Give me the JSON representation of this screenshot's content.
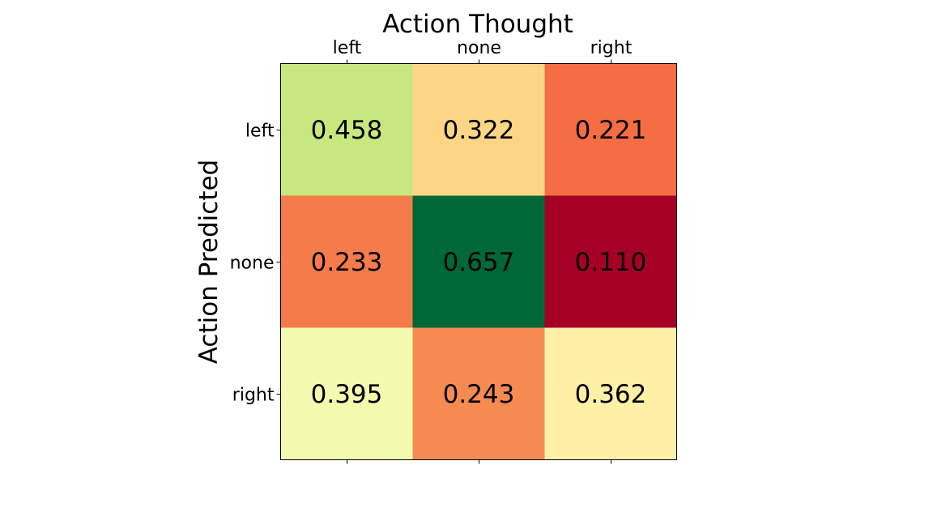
{
  "chart_data": {
    "type": "heatmap",
    "title": "Action Thought",
    "xlabel": "",
    "ylabel": "Action Predicted",
    "x_categories": [
      "left",
      "none",
      "right"
    ],
    "y_categories": [
      "left",
      "none",
      "right"
    ],
    "x_axis_position": "top",
    "values": [
      [
        0.458,
        0.322,
        0.221
      ],
      [
        0.233,
        0.657,
        0.11
      ],
      [
        0.395,
        0.243,
        0.362
      ]
    ],
    "value_labels": [
      [
        "0.458",
        "0.322",
        "0.221"
      ],
      [
        "0.233",
        "0.657",
        "0.110"
      ],
      [
        "0.395",
        "0.243",
        "0.362"
      ]
    ],
    "colormap": "RdYlGn",
    "cell_colors": [
      [
        "#c7e77f",
        "#fdd685",
        "#f46d43"
      ],
      [
        "#f57b4a",
        "#006837",
        "#a50026"
      ],
      [
        "#f4faaf",
        "#f68b51",
        "#fff0a8"
      ]
    ],
    "grid": false,
    "legend": "none"
  }
}
